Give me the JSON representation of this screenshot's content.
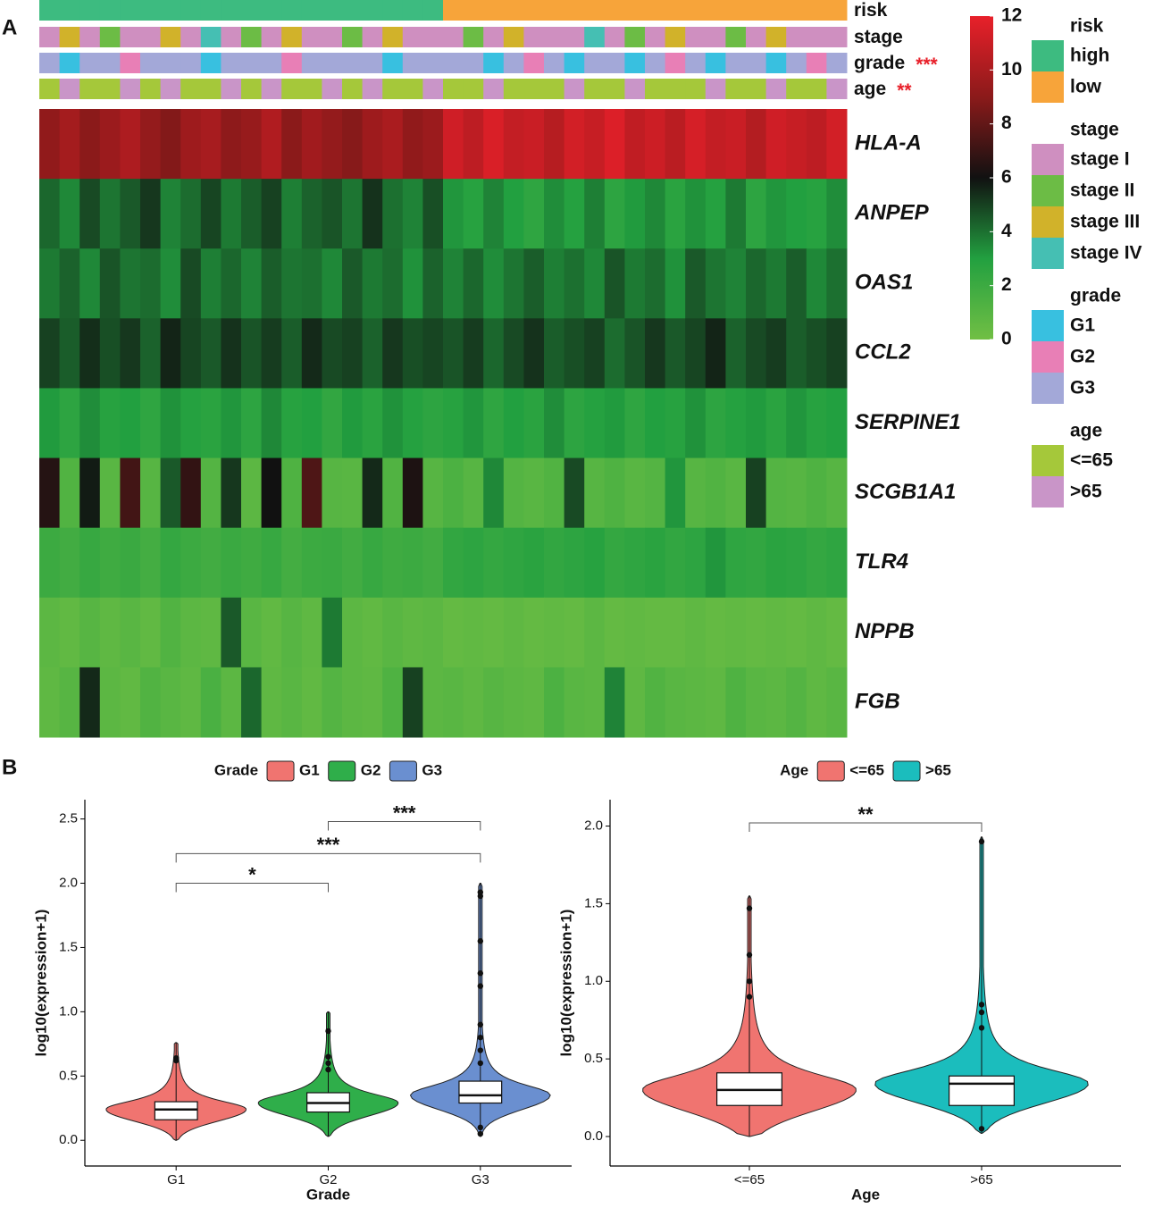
{
  "panel_labels": [
    "A",
    "B"
  ],
  "chart_data": [
    {
      "type": "heatmap",
      "zlim": [
        0,
        12
      ],
      "zticks": [
        0,
        2,
        4,
        6,
        8,
        10,
        12
      ],
      "colors": [
        "#71bf44",
        "#22a040",
        "#111111",
        "#8b1a1a",
        "#e8202a"
      ],
      "annotations": [
        {
          "name": "risk",
          "levels": [
            {
              "label": "high",
              "color": "#3dbb80"
            },
            {
              "label": "low",
              "color": "#f7a43a"
            }
          ],
          "values": [
            "high",
            "high",
            "high",
            "high",
            "high",
            "high",
            "high",
            "high",
            "high",
            "high",
            "high",
            "high",
            "high",
            "high",
            "high",
            "high",
            "high",
            "high",
            "high",
            "high",
            "low",
            "low",
            "low",
            "low",
            "low",
            "low",
            "low",
            "low",
            "low",
            "low",
            "low",
            "low",
            "low",
            "low",
            "low",
            "low",
            "low",
            "low",
            "low",
            "low"
          ]
        },
        {
          "name": "stage",
          "levels": [
            {
              "label": "stage I",
              "color": "#cf8fc0"
            },
            {
              "label": "stage II",
              "color": "#6cbc45"
            },
            {
              "label": "stage III",
              "color": "#d1b22a"
            },
            {
              "label": "stage IV",
              "color": "#45bfb3"
            }
          ],
          "values": [
            "stage I",
            "stage III",
            "stage I",
            "stage II",
            "stage I",
            "stage I",
            "stage III",
            "stage I",
            "stage IV",
            "stage I",
            "stage II",
            "stage I",
            "stage III",
            "stage I",
            "stage I",
            "stage II",
            "stage I",
            "stage III",
            "stage I",
            "stage I",
            "stage I",
            "stage II",
            "stage I",
            "stage III",
            "stage I",
            "stage I",
            "stage I",
            "stage IV",
            "stage I",
            "stage II",
            "stage I",
            "stage III",
            "stage I",
            "stage I",
            "stage II",
            "stage I",
            "stage III",
            "stage I",
            "stage I",
            "stage I"
          ]
        },
        {
          "name": "grade",
          "significance": "***",
          "levels": [
            {
              "label": "G1",
              "color": "#38c0e0"
            },
            {
              "label": "G2",
              "color": "#e87fb6"
            },
            {
              "label": "G3",
              "color": "#a3a8d8"
            }
          ],
          "values": [
            "G3",
            "G1",
            "G3",
            "G3",
            "G2",
            "G3",
            "G3",
            "G3",
            "G1",
            "G3",
            "G3",
            "G3",
            "G2",
            "G3",
            "G3",
            "G3",
            "G3",
            "G1",
            "G3",
            "G3",
            "G3",
            "G3",
            "G1",
            "G3",
            "G2",
            "G3",
            "G1",
            "G3",
            "G3",
            "G1",
            "G3",
            "G2",
            "G3",
            "G1",
            "G3",
            "G3",
            "G1",
            "G3",
            "G2",
            "G3"
          ]
        },
        {
          "name": "age",
          "significance": "**",
          "levels": [
            {
              "label": "<=65",
              "color": "#a5c83a"
            },
            {
              "label": ">65",
              "color": "#c995c8"
            }
          ],
          "values": [
            "<=65",
            ">65",
            "<=65",
            "<=65",
            ">65",
            "<=65",
            ">65",
            "<=65",
            "<=65",
            ">65",
            "<=65",
            ">65",
            "<=65",
            "<=65",
            ">65",
            "<=65",
            ">65",
            "<=65",
            "<=65",
            ">65",
            "<=65",
            "<=65",
            ">65",
            "<=65",
            "<=65",
            "<=65",
            ">65",
            "<=65",
            "<=65",
            ">65",
            "<=65",
            "<=65",
            "<=65",
            ">65",
            "<=65",
            "<=65",
            ">65",
            "<=65",
            "<=65",
            ">65"
          ]
        }
      ],
      "rows": [
        {
          "name": "HLA-A",
          "values": [
            9.2,
            9.8,
            9.0,
            9.5,
            10.1,
            9.3,
            8.8,
            9.6,
            9.9,
            9.1,
            9.4,
            10.2,
            9.0,
            9.7,
            9.3,
            8.9,
            9.6,
            10.0,
            9.2,
            9.5,
            11.2,
            10.6,
            11.5,
            10.8,
            11.0,
            10.4,
            11.3,
            10.9,
            11.6,
            10.7,
            11.1,
            10.5,
            11.4,
            10.8,
            11.0,
            10.3,
            11.2,
            10.9,
            10.6,
            11.3
          ]
        },
        {
          "name": "ANPEP",
          "values": [
            4.2,
            3.5,
            4.8,
            3.9,
            4.5,
            5.2,
            3.6,
            4.1,
            4.9,
            3.8,
            4.4,
            5.0,
            3.7,
            4.3,
            4.6,
            3.9,
            5.3,
            4.0,
            3.6,
            4.7,
            3.2,
            2.8,
            3.6,
            3.0,
            2.5,
            3.4,
            2.9,
            3.7,
            2.6,
            3.1,
            3.5,
            2.7,
            3.3,
            2.9,
            3.8,
            2.6,
            3.2,
            3.0,
            2.8,
            3.4
          ]
        },
        {
          "name": "OAS1",
          "values": [
            3.8,
            4.3,
            3.5,
            4.6,
            3.9,
            4.1,
            3.4,
            4.8,
            3.7,
            4.2,
            3.6,
            4.4,
            3.9,
            4.0,
            3.5,
            4.5,
            3.8,
            4.1,
            3.3,
            4.3,
            3.6,
            4.2,
            3.4,
            3.9,
            4.4,
            3.7,
            4.0,
            3.5,
            4.6,
            3.8,
            4.1,
            3.3,
            4.5,
            3.9,
            3.6,
            4.2,
            3.8,
            4.4,
            3.5,
            4.0
          ]
        },
        {
          "name": "CCL2",
          "values": [
            5.0,
            4.4,
            5.4,
            4.7,
            5.2,
            4.3,
            5.6,
            4.9,
            4.5,
            5.3,
            4.6,
            5.1,
            4.4,
            5.5,
            4.8,
            5.0,
            4.3,
            5.2,
            4.7,
            4.9,
            4.6,
            5.1,
            4.2,
            4.8,
            5.3,
            4.4,
            4.7,
            5.0,
            4.1,
            4.6,
            5.2,
            4.5,
            4.9,
            5.6,
            4.3,
            4.8,
            5.1,
            4.4,
            4.7,
            5.0
          ]
        },
        {
          "name": "SERPINE1",
          "values": [
            3.1,
            2.6,
            3.4,
            2.8,
            3.0,
            2.5,
            3.3,
            2.9,
            2.7,
            3.2,
            2.6,
            3.5,
            2.8,
            3.0,
            2.4,
            3.1,
            2.7,
            3.3,
            2.9,
            2.6,
            2.8,
            3.2,
            2.5,
            3.0,
            2.7,
            3.4,
            2.6,
            2.9,
            3.1,
            2.5,
            3.0,
            2.8,
            3.3,
            2.6,
            2.9,
            3.1,
            2.7,
            3.2,
            2.8,
            3.0
          ]
        },
        {
          "name": "SCGB1A1",
          "values": [
            6.5,
            1.2,
            5.8,
            0.9,
            7.2,
            1.0,
            4.5,
            6.8,
            1.1,
            5.2,
            0.8,
            6.0,
            1.3,
            7.5,
            1.0,
            0.9,
            5.5,
            1.2,
            6.3,
            1.0,
            1.4,
            1.0,
            3.5,
            1.1,
            0.9,
            1.2,
            4.8,
            1.0,
            1.3,
            0.9,
            1.1,
            3.2,
            1.0,
            1.2,
            0.9,
            5.0,
            1.1,
            1.0,
            1.3,
            1.0
          ]
        },
        {
          "name": "TLR4",
          "values": [
            2.0,
            1.8,
            2.2,
            1.9,
            2.1,
            1.7,
            2.3,
            2.0,
            1.8,
            2.1,
            1.9,
            2.2,
            1.7,
            2.0,
            2.1,
            1.8,
            2.2,
            1.9,
            2.0,
            1.8,
            2.4,
            2.6,
            2.3,
            2.5,
            2.7,
            2.4,
            2.6,
            2.8,
            2.3,
            2.5,
            2.7,
            2.4,
            2.6,
            3.2,
            2.5,
            2.4,
            2.7,
            2.6,
            2.3,
            2.5
          ]
        },
        {
          "name": "NPPB",
          "values": [
            0.8,
            0.6,
            1.0,
            0.7,
            0.9,
            0.6,
            1.2,
            0.8,
            0.7,
            4.5,
            0.9,
            0.6,
            1.0,
            0.7,
            3.8,
            0.8,
            0.6,
            0.9,
            0.7,
            0.8,
            0.5,
            0.6,
            0.5,
            0.7,
            0.5,
            0.6,
            0.5,
            0.8,
            0.5,
            0.6,
            0.5,
            0.5,
            0.7,
            0.5,
            0.6,
            0.5,
            0.6,
            0.5,
            0.7,
            0.5
          ]
        },
        {
          "name": "FGB",
          "values": [
            0.7,
            1.0,
            5.5,
            0.8,
            0.6,
            1.2,
            0.9,
            0.7,
            1.5,
            0.8,
            4.2,
            0.7,
            0.9,
            0.6,
            1.1,
            0.8,
            0.7,
            1.3,
            5.0,
            0.8,
            0.9,
            0.7,
            1.0,
            0.8,
            0.7,
            1.4,
            0.9,
            0.8,
            3.6,
            0.7,
            1.2,
            0.9,
            0.8,
            0.7,
            1.3,
            0.9,
            0.8,
            1.1,
            0.7,
            0.9
          ]
        }
      ]
    },
    {
      "type": "violin",
      "legend_title": "Grade",
      "xlabel": "Grade",
      "ylabel": "log10(expression+1)",
      "ylim": [
        -0.2,
        2.65
      ],
      "yticks": [
        {
          "value": 0,
          "label": "0.0"
        },
        {
          "value": 0.5,
          "label": "0.5"
        },
        {
          "value": 1,
          "label": "1.0"
        },
        {
          "value": 1.5,
          "label": "1.5"
        },
        {
          "value": 2,
          "label": "2.0"
        },
        {
          "value": 2.5,
          "label": "2.5"
        }
      ],
      "groups": [
        {
          "name": "G1",
          "color": "#f07470",
          "min": 0.0,
          "q1": 0.16,
          "median": 0.24,
          "q3": 0.3,
          "max": 0.76,
          "outliers": [
            0.62,
            0.64
          ]
        },
        {
          "name": "G2",
          "color": "#2fae4a",
          "min": 0.03,
          "q1": 0.22,
          "median": 0.29,
          "q3": 0.37,
          "max": 1.0,
          "outliers": [
            0.55,
            0.6,
            0.65,
            0.85
          ]
        },
        {
          "name": "G3",
          "color": "#6a8fd0",
          "min": 0.03,
          "q1": 0.29,
          "median": 0.35,
          "q3": 0.46,
          "max": 2.0,
          "outliers": [
            0.05,
            0.1,
            0.6,
            0.7,
            0.8,
            0.9,
            1.2,
            1.3,
            1.55,
            1.9,
            1.93
          ]
        }
      ],
      "comparisons": [
        {
          "groups": [
            "G1",
            "G2"
          ],
          "y": 2.0,
          "label": "*"
        },
        {
          "groups": [
            "G1",
            "G3"
          ],
          "y": 2.23,
          "label": "***"
        },
        {
          "groups": [
            "G2",
            "G3"
          ],
          "y": 2.48,
          "label": "***"
        }
      ]
    },
    {
      "type": "violin",
      "legend_title": "Age",
      "xlabel": "Age",
      "ylabel": "log10(expression+1)",
      "ylim": [
        -0.19,
        2.17
      ],
      "yticks": [
        {
          "value": 0,
          "label": "0.0"
        },
        {
          "value": 0.5,
          "label": "0.5"
        },
        {
          "value": 1,
          "label": "1.0"
        },
        {
          "value": 1.5,
          "label": "1.5"
        },
        {
          "value": 2,
          "label": "2.0"
        }
      ],
      "groups": [
        {
          "name": "<=65",
          "color": "#f07470",
          "min": 0.0,
          "q1": 0.2,
          "median": 0.3,
          "q3": 0.41,
          "max": 1.55,
          "outliers": [
            0.9,
            1.0,
            1.17,
            1.47
          ]
        },
        {
          "name": ">65",
          "color": "#1bbdbd",
          "min": 0.02,
          "q1": 0.2,
          "median": 0.34,
          "q3": 0.39,
          "max": 1.93,
          "outliers": [
            0.05,
            0.7,
            0.8,
            0.85,
            1.9
          ]
        }
      ],
      "comparisons": [
        {
          "groups": [
            "<=65",
            ">65"
          ],
          "y": 2.02,
          "label": "**"
        }
      ]
    }
  ]
}
